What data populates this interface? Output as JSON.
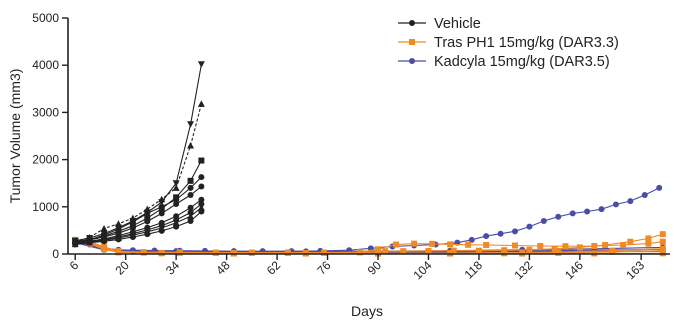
{
  "chart_data": {
    "type": "line",
    "xlabel": "Days",
    "ylabel": "Tumor Volume (mm3)",
    "xlim": [
      4,
      171
    ],
    "ylim": [
      0,
      5000
    ],
    "xticks": [
      6,
      20,
      34,
      48,
      62,
      76,
      90,
      104,
      118,
      132,
      146,
      163
    ],
    "yticks": [
      0,
      1000,
      2000,
      3000,
      4000,
      5000
    ],
    "grid": false,
    "legend_position": "top-right",
    "legend": [
      {
        "label": "Vehicle",
        "color": "#222222",
        "marker": "circle"
      },
      {
        "label": "Tras PH1 15mg/kg (DAR3.3)",
        "color": "#f08a24",
        "marker": "square"
      },
      {
        "label": "Kadcyla 15mg/kg (DAR3.5)",
        "color": "#4b4ba8",
        "marker": "circle"
      }
    ],
    "series": [
      {
        "name": "Vehicle",
        "color": "#222222",
        "marker": "circle",
        "x": [
          6,
          10,
          14,
          18,
          22,
          26,
          30,
          34,
          38,
          41
        ],
        "values": [
          250,
          300,
          360,
          440,
          550,
          690,
          860,
          1060,
          1250,
          1430
        ]
      },
      {
        "color": "#222222",
        "marker": "square",
        "x": [
          6,
          10,
          14,
          18,
          22,
          26,
          30,
          34,
          38,
          41
        ],
        "values": [
          260,
          310,
          380,
          480,
          600,
          760,
          960,
          1200,
          1550,
          1980
        ]
      },
      {
        "color": "#222222",
        "marker": "triangle-down",
        "x": [
          6,
          10,
          14,
          18,
          22,
          26,
          30,
          34,
          38,
          41
        ],
        "values": [
          280,
          340,
          430,
          560,
          700,
          880,
          1100,
          1500,
          2750,
          4020
        ]
      },
      {
        "color": "#222222",
        "marker": "triangle-up",
        "dashed": true,
        "x": [
          6,
          10,
          14,
          18,
          22,
          26,
          30,
          34,
          38,
          41
        ],
        "values": [
          270,
          350,
          540,
          640,
          760,
          950,
          1160,
          1400,
          2300,
          3180
        ]
      },
      {
        "color": "#222222",
        "marker": "circle",
        "x": [
          6,
          10,
          14,
          18,
          22,
          26,
          30,
          34,
          38,
          41
        ],
        "values": [
          240,
          300,
          400,
          530,
          680,
          860,
          1000,
          1150,
          1400,
          1630
        ]
      },
      {
        "color": "#222222",
        "marker": "circle",
        "x": [
          6,
          10,
          14,
          18,
          22,
          26,
          30,
          34,
          38,
          41
        ],
        "values": [
          230,
          270,
          320,
          390,
          470,
          560,
          660,
          800,
          980,
          1150
        ]
      },
      {
        "color": "#222222",
        "marker": "circle",
        "x": [
          6,
          10,
          14,
          18,
          22,
          26,
          30,
          34,
          38,
          41
        ],
        "values": [
          220,
          260,
          300,
          360,
          430,
          510,
          600,
          720,
          880,
          1060
        ]
      },
      {
        "color": "#222222",
        "marker": "triangle-up",
        "x": [
          6,
          10,
          14,
          18,
          22,
          26,
          30,
          34,
          38,
          41
        ],
        "values": [
          210,
          250,
          290,
          340,
          400,
          470,
          550,
          660,
          800,
          980
        ]
      },
      {
        "color": "#222222",
        "marker": "circle",
        "x": [
          6,
          10,
          14,
          18,
          22,
          26,
          30,
          34,
          38,
          41
        ],
        "values": [
          200,
          240,
          270,
          310,
          360,
          420,
          490,
          580,
          700,
          900
        ]
      },
      {
        "name": "Tras PH1 15mg/kg (DAR3.3)",
        "color": "#f08a24",
        "marker": "square",
        "x": [
          6,
          10,
          14,
          18,
          25,
          35,
          45,
          55,
          65,
          75,
          85,
          92,
          97,
          104,
          111,
          118,
          125,
          132,
          139,
          146,
          153,
          160,
          165,
          169
        ],
        "values": [
          300,
          260,
          150,
          60,
          40,
          35,
          30,
          30,
          30,
          30,
          35,
          60,
          60,
          65,
          70,
          70,
          80,
          90,
          110,
          140,
          190,
          260,
          330,
          420
        ]
      },
      {
        "color": "#f08a24",
        "marker": "square",
        "x": [
          6,
          10,
          14,
          18,
          25,
          35,
          45,
          55,
          65,
          75,
          85,
          90,
          95,
          100,
          105,
          110,
          115,
          120,
          128,
          135,
          142,
          150,
          158,
          165,
          169
        ],
        "values": [
          290,
          250,
          130,
          50,
          30,
          25,
          25,
          25,
          25,
          25,
          40,
          100,
          200,
          220,
          215,
          205,
          195,
          190,
          180,
          170,
          165,
          170,
          190,
          220,
          260
        ]
      },
      {
        "color": "#f08a24",
        "marker": "square",
        "x": [
          6,
          10,
          14,
          18,
          30,
          50,
          70,
          90,
          110,
          125,
          140,
          155,
          169
        ],
        "values": [
          280,
          240,
          120,
          45,
          25,
          20,
          20,
          20,
          20,
          25,
          40,
          70,
          110
        ]
      },
      {
        "color": "#f08a24",
        "marker": "square",
        "x": [
          6,
          10,
          14,
          18,
          30,
          50,
          70,
          90,
          110,
          125,
          140,
          155,
          169
        ],
        "values": [
          270,
          230,
          110,
          40,
          20,
          15,
          15,
          15,
          15,
          15,
          25,
          45,
          75
        ]
      },
      {
        "color": "#f08a24",
        "marker": "square",
        "x": [
          6,
          10,
          14,
          18,
          30,
          50,
          70,
          90,
          110,
          130,
          150,
          169
        ],
        "values": [
          260,
          220,
          100,
          35,
          15,
          10,
          10,
          10,
          10,
          10,
          12,
          15
        ]
      },
      {
        "name": "Kadcyla 15mg/kg (DAR3.5)",
        "color": "#4b4ba8",
        "marker": "circle",
        "x": [
          6,
          10,
          14,
          18,
          22,
          28,
          35,
          42,
          50,
          58,
          66,
          74,
          82,
          88,
          94,
          100,
          106,
          112,
          116,
          120,
          124,
          128,
          132,
          136,
          140,
          144,
          148,
          152,
          156,
          160,
          164,
          168
        ],
        "values": [
          280,
          200,
          120,
          90,
          80,
          75,
          70,
          65,
          60,
          60,
          60,
          65,
          80,
          120,
          160,
          180,
          200,
          240,
          300,
          380,
          430,
          480,
          580,
          700,
          790,
          860,
          900,
          950,
          1050,
          1120,
          1250,
          1400
        ]
      },
      {
        "color": "#4b4ba8",
        "marker": "circle",
        "x": [
          6,
          14,
          22,
          34,
          50,
          70,
          90,
          110,
          130,
          150,
          169
        ],
        "values": [
          260,
          110,
          70,
          60,
          55,
          55,
          60,
          70,
          90,
          110,
          140
        ]
      },
      {
        "color": "#4b4ba8",
        "marker": "circle",
        "x": [
          6,
          14,
          22,
          34,
          50,
          70,
          90,
          110,
          130,
          150,
          169
        ],
        "values": [
          250,
          100,
          60,
          50,
          45,
          45,
          50,
          55,
          65,
          80,
          100
        ]
      },
      {
        "color": "#4b4ba8",
        "marker": "circle",
        "x": [
          6,
          14,
          22,
          34,
          50,
          70,
          90,
          110,
          130,
          150,
          169
        ],
        "values": [
          240,
          90,
          50,
          40,
          35,
          35,
          40,
          45,
          50,
          55,
          60
        ]
      }
    ]
  }
}
